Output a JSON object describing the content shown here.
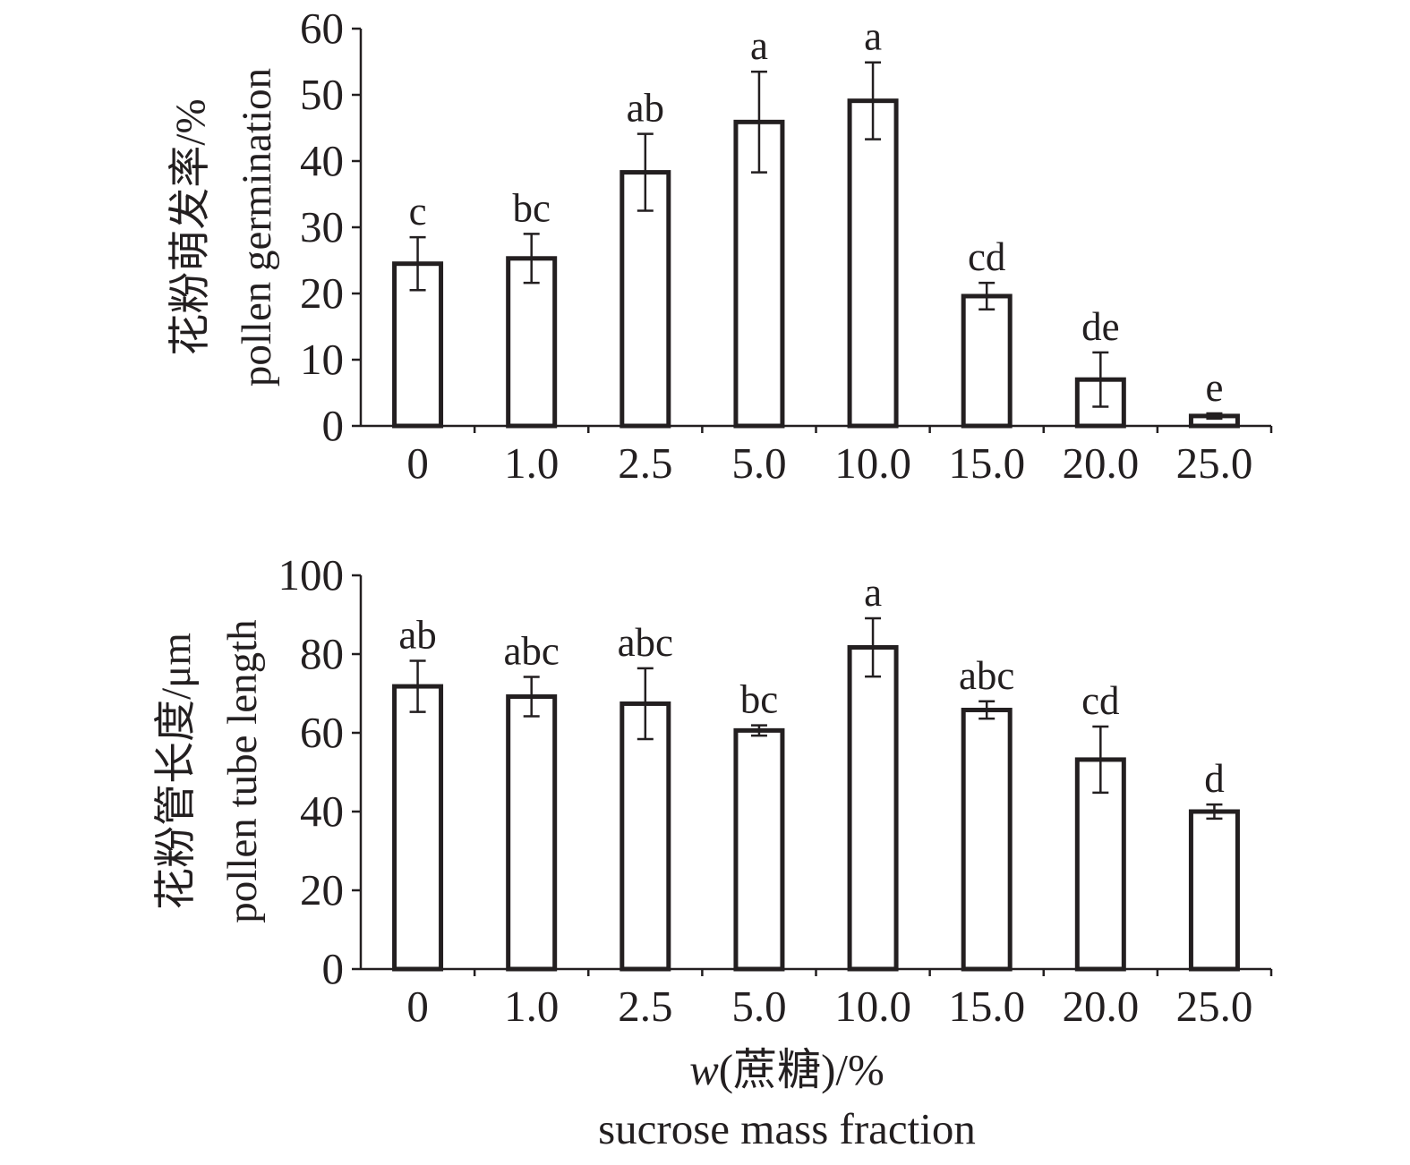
{
  "chart_data": [
    {
      "type": "bar",
      "ylabel_cn": "花粉萌发率/%",
      "ylabel_en": "pollen germination",
      "categories": [
        "0",
        "1.0",
        "2.5",
        "5.0",
        "10.0",
        "15.0",
        "20.0",
        "25.0"
      ],
      "values": [
        24.5,
        25.3,
        38.3,
        45.9,
        49.1,
        19.6,
        7.0,
        1.5
      ],
      "errors": [
        4.0,
        3.7,
        5.8,
        7.6,
        5.8,
        2.0,
        4.1,
        0.4
      ],
      "significance": [
        "c",
        "bc",
        "ab",
        "a",
        "a",
        "cd",
        "de",
        "e"
      ],
      "ylim": [
        0,
        60
      ],
      "yticks": [
        0,
        10,
        20,
        30,
        40,
        50,
        60
      ]
    },
    {
      "type": "bar",
      "ylabel_cn": "花粉管长度/μm",
      "ylabel_en": "pollen tube length",
      "categories": [
        "0",
        "1.0",
        "2.5",
        "5.0",
        "10.0",
        "15.0",
        "20.0",
        "25.0"
      ],
      "values": [
        71.8,
        69.2,
        67.4,
        60.6,
        81.7,
        65.8,
        53.2,
        40.0
      ],
      "errors": [
        6.5,
        5.0,
        9.0,
        1.3,
        7.4,
        2.2,
        8.4,
        1.8
      ],
      "significance": [
        "ab",
        "abc",
        "abc",
        "bc",
        "a",
        "abc",
        "cd",
        "d"
      ],
      "ylim": [
        0,
        100
      ],
      "yticks": [
        0,
        20,
        40,
        60,
        80,
        100
      ]
    }
  ],
  "xlabel": {
    "var": "w",
    "rest": "(蔗糖)/%",
    "en": "sucrose mass fraction"
  }
}
